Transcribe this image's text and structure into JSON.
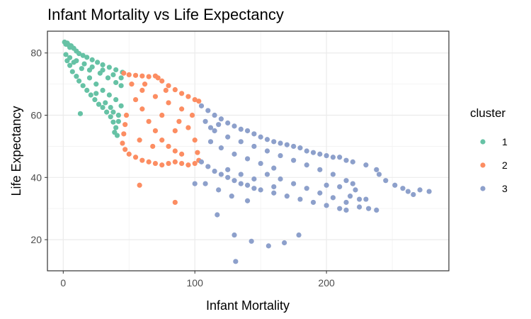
{
  "chart_data": {
    "type": "scatter",
    "title": "Infant Mortality vs Life Expectancy",
    "xlabel": "Infant Mortality",
    "ylabel": "Life Expectancy",
    "xlim": [
      -12,
      293
    ],
    "ylim": [
      10,
      87
    ],
    "x_ticks": [
      0,
      100,
      200
    ],
    "y_ticks": [
      20,
      40,
      60,
      80
    ],
    "grid": true,
    "legend": {
      "title": "cluster",
      "position": "right"
    },
    "series": [
      {
        "name": "1",
        "color": "#66c2a5",
        "points": [
          [
            1,
            83.5
          ],
          [
            2,
            82.8
          ],
          [
            3,
            83.2
          ],
          [
            4,
            82.6
          ],
          [
            5,
            81.8
          ],
          [
            6,
            82.3
          ],
          [
            8,
            81.5
          ],
          [
            10,
            80.6
          ],
          [
            12,
            79.8
          ],
          [
            15,
            79.2
          ],
          [
            18,
            78.6
          ],
          [
            22,
            77.8
          ],
          [
            26,
            77.0
          ],
          [
            30,
            76.2
          ],
          [
            35,
            75.4
          ],
          [
            40,
            74.6
          ],
          [
            45,
            73.8
          ],
          [
            2,
            79.5
          ],
          [
            3,
            77.5
          ],
          [
            5,
            76.0
          ],
          [
            7,
            74.0
          ],
          [
            10,
            72.5
          ],
          [
            12,
            71.0
          ],
          [
            15,
            69.5
          ],
          [
            18,
            68.0
          ],
          [
            21,
            66.5
          ],
          [
            24,
            65.0
          ],
          [
            27,
            63.5
          ],
          [
            30,
            62.5
          ],
          [
            33,
            61.0
          ],
          [
            36,
            59.5
          ],
          [
            38,
            57.8
          ],
          [
            40,
            56.0
          ],
          [
            39,
            54.5
          ],
          [
            41,
            53.5
          ],
          [
            13,
            60.5
          ],
          [
            20,
            72.0
          ],
          [
            25,
            70.0
          ],
          [
            30,
            68.0
          ],
          [
            35,
            66.5
          ],
          [
            40,
            65.0
          ],
          [
            44,
            63.0
          ],
          [
            42,
            60.0
          ],
          [
            8,
            77.0
          ],
          [
            14,
            75.0
          ],
          [
            20,
            74.5
          ],
          [
            28,
            73.5
          ],
          [
            34,
            72.0
          ],
          [
            40,
            70.5
          ],
          [
            44,
            69.5
          ],
          [
            5,
            78.5
          ],
          [
            10,
            77.5
          ],
          [
            16,
            76.5
          ],
          [
            22,
            75.5
          ],
          [
            30,
            74.5
          ],
          [
            38,
            73.0
          ],
          [
            44,
            72.0
          ],
          [
            25,
            67.0
          ],
          [
            32,
            64.0
          ],
          [
            36,
            62.5
          ],
          [
            42,
            58.0
          ],
          [
            38,
            61.0
          ]
        ]
      },
      {
        "name": "2",
        "color": "#fc8d62",
        "points": [
          [
            46,
            73.5
          ],
          [
            50,
            73.0
          ],
          [
            55,
            72.8
          ],
          [
            60,
            72.6
          ],
          [
            65,
            72.4
          ],
          [
            70,
            72.6
          ],
          [
            72,
            72.0
          ],
          [
            75,
            71.0
          ],
          [
            80,
            69.5
          ],
          [
            85,
            68.2
          ],
          [
            90,
            67.0
          ],
          [
            95,
            66.0
          ],
          [
            100,
            65.0
          ],
          [
            103,
            64.5
          ],
          [
            48,
            60.0
          ],
          [
            47,
            57.0
          ],
          [
            46,
            54.0
          ],
          [
            45,
            51.0
          ],
          [
            47,
            49.0
          ],
          [
            50,
            47.5
          ],
          [
            55,
            46.5
          ],
          [
            60,
            45.5
          ],
          [
            65,
            45.0
          ],
          [
            70,
            44.5
          ],
          [
            75,
            44.0
          ],
          [
            80,
            44.5
          ],
          [
            85,
            45.0
          ],
          [
            90,
            44.5
          ],
          [
            95,
            44.0
          ],
          [
            100,
            44.5
          ],
          [
            103,
            45.5
          ],
          [
            55,
            65.0
          ],
          [
            60,
            62.0
          ],
          [
            65,
            58.0
          ],
          [
            70,
            55.0
          ],
          [
            75,
            52.0
          ],
          [
            80,
            50.0
          ],
          [
            85,
            48.5
          ],
          [
            90,
            47.5
          ],
          [
            95,
            56.0
          ],
          [
            100,
            52.0
          ],
          [
            102,
            48.0
          ],
          [
            60,
            68.0
          ],
          [
            70,
            66.0
          ],
          [
            80,
            64.0
          ],
          [
            90,
            62.0
          ],
          [
            98,
            60.0
          ],
          [
            52,
            70.0
          ],
          [
            62,
            70.0
          ],
          [
            78,
            68.0
          ],
          [
            88,
            58.0
          ],
          [
            58,
            52.0
          ],
          [
            68,
            50.0
          ],
          [
            75,
            60.0
          ],
          [
            85,
            55.0
          ],
          [
            58,
            37.5
          ],
          [
            85,
            32.0
          ]
        ]
      },
      {
        "name": "3",
        "color": "#8da0cb",
        "points": [
          [
            105,
            63.0
          ],
          [
            110,
            61.5
          ],
          [
            115,
            60.0
          ],
          [
            120,
            58.8
          ],
          [
            125,
            57.5
          ],
          [
            130,
            56.5
          ],
          [
            135,
            55.5
          ],
          [
            140,
            55.0
          ],
          [
            145,
            54.0
          ],
          [
            150,
            53.0
          ],
          [
            155,
            52.2
          ],
          [
            160,
            51.5
          ],
          [
            165,
            51.0
          ],
          [
            170,
            50.5
          ],
          [
            175,
            50.0
          ],
          [
            180,
            49.5
          ],
          [
            185,
            48.5
          ],
          [
            190,
            48.0
          ],
          [
            195,
            47.5
          ],
          [
            200,
            47.0
          ],
          [
            205,
            46.5
          ],
          [
            210,
            46.5
          ],
          [
            215,
            45.5
          ],
          [
            220,
            45.0
          ],
          [
            230,
            44.0
          ],
          [
            238,
            42.5
          ],
          [
            105,
            45.0
          ],
          [
            110,
            43.5
          ],
          [
            115,
            42.0
          ],
          [
            120,
            41.0
          ],
          [
            125,
            40.0
          ],
          [
            130,
            39.0
          ],
          [
            135,
            38.0
          ],
          [
            140,
            37.5
          ],
          [
            145,
            36.5
          ],
          [
            150,
            36.0
          ],
          [
            160,
            35.0
          ],
          [
            170,
            34.0
          ],
          [
            180,
            33.0
          ],
          [
            190,
            32.0
          ],
          [
            200,
            31.0
          ],
          [
            210,
            30.0
          ],
          [
            215,
            29.5
          ],
          [
            108,
            38.0
          ],
          [
            118,
            36.0
          ],
          [
            128,
            34.0
          ],
          [
            140,
            32.5
          ],
          [
            155,
            41.0
          ],
          [
            165,
            39.5
          ],
          [
            175,
            38.0
          ],
          [
            185,
            36.5
          ],
          [
            195,
            35.0
          ],
          [
            205,
            33.5
          ],
          [
            215,
            32.0
          ],
          [
            218,
            34.0
          ],
          [
            222,
            36.0
          ],
          [
            225,
            33.0
          ],
          [
            215,
            39.0
          ],
          [
            205,
            41.0
          ],
          [
            195,
            42.5
          ],
          [
            185,
            44.0
          ],
          [
            175,
            45.5
          ],
          [
            165,
            47.0
          ],
          [
            155,
            48.5
          ],
          [
            145,
            50.0
          ],
          [
            135,
            51.5
          ],
          [
            125,
            53.0
          ],
          [
            115,
            55.0
          ],
          [
            200,
            37.5
          ],
          [
            210,
            37.0
          ],
          [
            220,
            38.0
          ],
          [
            160,
            43.0
          ],
          [
            150,
            44.5
          ],
          [
            140,
            46.0
          ],
          [
            130,
            47.5
          ],
          [
            120,
            49.5
          ],
          [
            112,
            51.5
          ],
          [
            125,
            42.5
          ],
          [
            135,
            41.0
          ],
          [
            145,
            39.5
          ],
          [
            160,
            37.0
          ],
          [
            225,
            30.5
          ],
          [
            232,
            30.0
          ],
          [
            238,
            29.5
          ],
          [
            230,
            33.0
          ],
          [
            245,
            39.0
          ],
          [
            252,
            37.5
          ],
          [
            258,
            36.5
          ],
          [
            262,
            35.5
          ],
          [
            266,
            34.5
          ],
          [
            271,
            36.0
          ],
          [
            278,
            35.5
          ],
          [
            240,
            41.0
          ],
          [
            108,
            58.0
          ],
          [
            112,
            56.0
          ],
          [
            118,
            57.0
          ],
          [
            100,
            38.0
          ],
          [
            117,
            28.0
          ],
          [
            130,
            21.5
          ],
          [
            131,
            13.0
          ],
          [
            143,
            19.5
          ],
          [
            156,
            18.0
          ],
          [
            168,
            19.0
          ],
          [
            179,
            21.5
          ]
        ]
      }
    ]
  }
}
